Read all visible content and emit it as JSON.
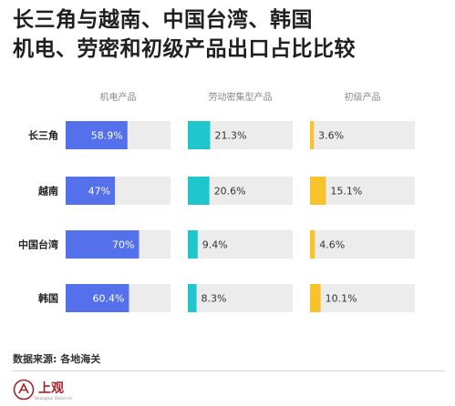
{
  "title_lines": [
    "长三角与越南、中国台湾、韩国",
    "机电、劳密和初级产品出口占比比较"
  ],
  "source": "数据来源: 各地海关",
  "logo": {
    "name": "上观",
    "sub": "Shanghai Observer"
  },
  "colors": {
    "mechanical": "#5470ea",
    "labor": "#1fc7cc",
    "primary": "#f8c22a",
    "track": "#ececec"
  },
  "chart_data": {
    "type": "bar",
    "orientation": "horizontal",
    "categories": [
      "长三角",
      "越南",
      "中国台湾",
      "韩国"
    ],
    "series": [
      {
        "name": "机电产品",
        "values": [
          58.9,
          47,
          70,
          60.4
        ],
        "labels": [
          "58.9%",
          "47%",
          "70%",
          "60.4%"
        ]
      },
      {
        "name": "劳动密集型产品",
        "values": [
          21.3,
          20.6,
          9.4,
          8.3
        ],
        "labels": [
          "21.3%",
          "20.6%",
          "9.4%",
          "8.3%"
        ]
      },
      {
        "name": "初级产品",
        "values": [
          3.6,
          15.1,
          4.6,
          10.1
        ],
        "labels": [
          "3.6%",
          "15.1%",
          "4.6%",
          "10.1%"
        ]
      }
    ],
    "xlim": [
      0,
      100
    ],
    "unit": "%"
  }
}
